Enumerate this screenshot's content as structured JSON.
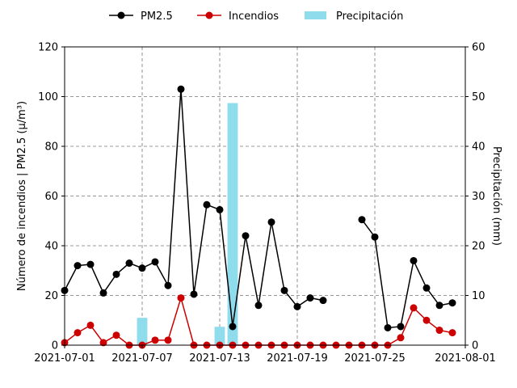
{
  "chart_data": {
    "type": "line",
    "x_start": "2021-07-01",
    "x_end": "2021-08-01",
    "x_ticks": [
      "2021-07-01",
      "2021-07-07",
      "2021-07-13",
      "2021-07-19",
      "2021-07-25",
      "2021-08-01"
    ],
    "ylabel_left": "Número de incendios | PM2.5 (μ/m³)",
    "ylabel_right": "Precipitación (mm)",
    "ylim_left": [
      0,
      120
    ],
    "ylim_right": [
      0,
      60
    ],
    "yticks_left": [
      0,
      20,
      40,
      60,
      80,
      100,
      120
    ],
    "yticks_right": [
      0,
      10,
      20,
      30,
      40,
      50,
      60
    ],
    "grid": true,
    "legend_position": "top-center",
    "dates": [
      "2021-07-01",
      "2021-07-02",
      "2021-07-03",
      "2021-07-04",
      "2021-07-05",
      "2021-07-06",
      "2021-07-07",
      "2021-07-08",
      "2021-07-09",
      "2021-07-10",
      "2021-07-11",
      "2021-07-12",
      "2021-07-13",
      "2021-07-14",
      "2021-07-15",
      "2021-07-16",
      "2021-07-17",
      "2021-07-18",
      "2021-07-19",
      "2021-07-20",
      "2021-07-21",
      "2021-07-22",
      "2021-07-23",
      "2021-07-24",
      "2021-07-25",
      "2021-07-26",
      "2021-07-27",
      "2021-07-28",
      "2021-07-29",
      "2021-07-30",
      "2021-07-31"
    ],
    "series": [
      {
        "name": "PM2.5",
        "axis": "left",
        "color": "#000000",
        "values": [
          22,
          32,
          32.5,
          21,
          28.5,
          33,
          31,
          33.5,
          24,
          103,
          20.5,
          56.5,
          54.5,
          7.5,
          44,
          16,
          49.5,
          22,
          15.5,
          19,
          18,
          null,
          null,
          50.5,
          43.5,
          7,
          7.5,
          34,
          23,
          16,
          17
        ]
      },
      {
        "name": "Incendios",
        "axis": "left",
        "color": "#cc0000",
        "values": [
          1,
          5,
          8,
          1,
          4,
          0,
          0,
          2,
          2,
          19,
          0,
          0,
          0,
          0,
          0,
          0,
          0,
          0,
          0,
          0,
          0,
          0,
          0,
          0,
          0,
          0,
          3,
          15,
          10,
          6,
          5
        ]
      },
      {
        "name": "Precipitación",
        "axis": "right",
        "type": "bar",
        "color": "#8fdcec",
        "values": [
          0,
          0,
          0,
          0,
          0,
          0,
          5.5,
          0,
          0,
          0,
          0,
          0,
          3.7,
          48.7,
          0,
          0,
          0,
          0,
          0,
          0,
          0,
          0,
          0,
          0,
          0,
          0,
          0,
          0,
          0,
          0,
          0
        ]
      }
    ]
  }
}
